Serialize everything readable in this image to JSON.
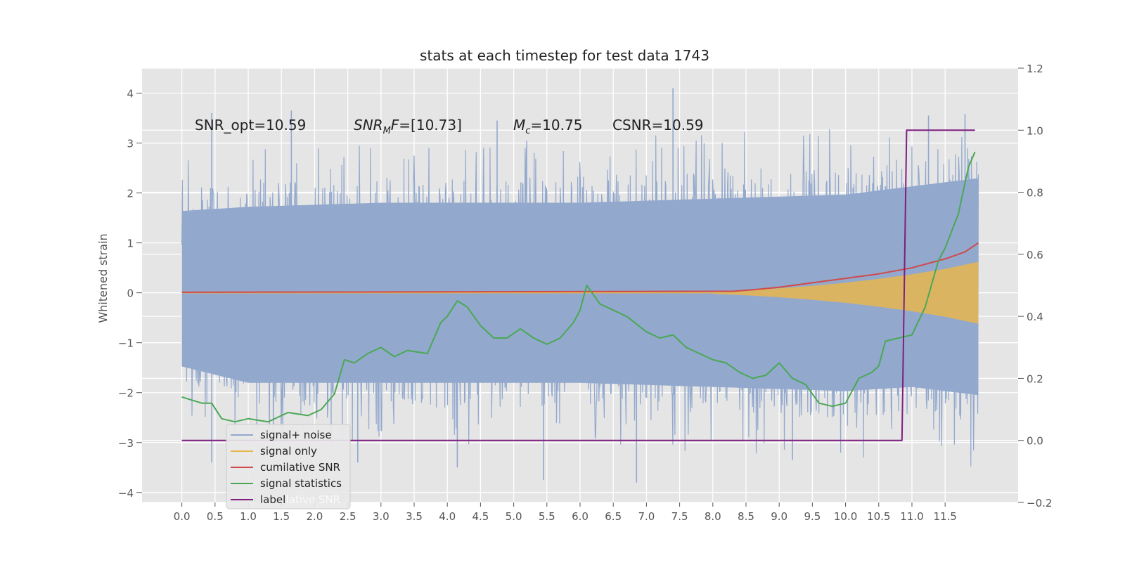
{
  "chart_data": {
    "type": "line",
    "title": "stats at each timestep for test data 1743",
    "ylabel": "Whitened strain",
    "xlabel": "",
    "xlim": [
      -0.6,
      12.6
    ],
    "ylim": [
      -4.2,
      4.5
    ],
    "y2lim": [
      -0.2,
      1.2
    ],
    "x_ticks": [
      "0.0",
      "0.5",
      "1.0",
      "1.5",
      "2.0",
      "2.5",
      "3.0",
      "3.5",
      "4.0",
      "4.5",
      "5.0",
      "5.5",
      "6.0",
      "6.5",
      "7.0",
      "7.5",
      "8.0",
      "8.5",
      "9.0",
      "9.5",
      "10.0",
      "10.5",
      "11.0",
      "11.5"
    ],
    "y_ticks": [
      "−4",
      "−3",
      "−2",
      "−1",
      "0",
      "1",
      "2",
      "3",
      "4"
    ],
    "y2_ticks": [
      "−0.2",
      "0.0",
      "0.2",
      "0.4",
      "0.6",
      "0.8",
      "1.0",
      "1.2"
    ],
    "grid": true,
    "legend_position": "lower-left",
    "colors": {
      "plot_bg": "#e5e5e5",
      "grid": "#ffffff",
      "signal_noise": "#92a8cd",
      "signal_only": "#e8b64f",
      "cumulative_snr": "#cf4b4b",
      "signal_statistics": "#4aa855",
      "label": "#7e1e80"
    },
    "annotations": [
      {
        "text": "SNR_opt=10.59"
      },
      {
        "text": "SNR",
        "sub": "M",
        "after": "F=[10.73]"
      },
      {
        "text": "M",
        "sub": "c",
        "after": "=10.75"
      },
      {
        "text": "CSNR=10.59"
      }
    ],
    "legend_ghost": "cumilative SNR",
    "series": [
      {
        "key": "signal_noise",
        "name": "signal+ noise",
        "axis": "left",
        "style": "noise",
        "x_range": [
          0.0,
          12.0
        ],
        "envelope_upper": [
          [
            0.0,
            2.0
          ],
          [
            1.0,
            2.1
          ],
          [
            3.0,
            2.2
          ],
          [
            6.0,
            2.2
          ],
          [
            8.0,
            2.3
          ],
          [
            10.0,
            2.4
          ],
          [
            11.0,
            2.6
          ],
          [
            12.0,
            2.8
          ]
        ],
        "envelope_lower": [
          [
            0.0,
            -1.8
          ],
          [
            1.0,
            -2.2
          ],
          [
            3.0,
            -2.2
          ],
          [
            6.0,
            -2.2
          ],
          [
            8.0,
            -2.3
          ],
          [
            10.0,
            -2.4
          ],
          [
            11.0,
            -2.3
          ],
          [
            12.0,
            -2.5
          ]
        ],
        "notable_peaks": [
          [
            0.45,
            3.6
          ],
          [
            1.65,
            3.65
          ],
          [
            4.75,
            3.45
          ],
          [
            7.4,
            4.1
          ],
          [
            11.25,
            3.55
          ],
          [
            11.8,
            3.58
          ]
        ],
        "notable_troughs": [
          [
            0.45,
            -3.4
          ],
          [
            2.65,
            -3.4
          ],
          [
            4.15,
            -3.5
          ],
          [
            5.45,
            -3.75
          ],
          [
            6.85,
            -3.8
          ],
          [
            9.2,
            -3.35
          ]
        ]
      },
      {
        "key": "signal_only",
        "name": "signal only",
        "axis": "left",
        "style": "chirp",
        "x": [
          8.0,
          8.5,
          9.0,
          9.5,
          10.0,
          10.5,
          11.0,
          11.5,
          12.0
        ],
        "amplitude": [
          0.02,
          0.05,
          0.09,
          0.14,
          0.2,
          0.28,
          0.37,
          0.48,
          0.62
        ]
      },
      {
        "key": "cumulative_snr",
        "name": "cumilative SNR",
        "axis": "left",
        "style": "line",
        "x": [
          0.0,
          8.3,
          8.6,
          9.0,
          9.5,
          10.0,
          10.5,
          11.0,
          11.5,
          11.8,
          12.0
        ],
        "y": [
          0.01,
          0.03,
          0.06,
          0.11,
          0.2,
          0.29,
          0.38,
          0.5,
          0.68,
          0.82,
          1.0
        ]
      },
      {
        "key": "signal_statistics",
        "name": "signal statistics",
        "axis": "right",
        "style": "line",
        "x": [
          0.0,
          0.15,
          0.3,
          0.45,
          0.6,
          0.8,
          1.0,
          1.3,
          1.6,
          1.9,
          2.1,
          2.3,
          2.45,
          2.6,
          2.8,
          3.0,
          3.2,
          3.4,
          3.7,
          3.9,
          4.0,
          4.15,
          4.3,
          4.5,
          4.7,
          4.9,
          5.1,
          5.3,
          5.5,
          5.7,
          5.9,
          6.0,
          6.1,
          6.3,
          6.5,
          6.7,
          7.0,
          7.2,
          7.4,
          7.6,
          7.8,
          8.0,
          8.2,
          8.4,
          8.6,
          8.8,
          9.0,
          9.2,
          9.4,
          9.6,
          9.8,
          10.0,
          10.2,
          10.4,
          10.5,
          10.6,
          10.8,
          11.0,
          11.2,
          11.4,
          11.5,
          11.7,
          11.85,
          11.95
        ],
        "y": [
          0.14,
          0.13,
          0.12,
          0.12,
          0.07,
          0.06,
          0.07,
          0.06,
          0.09,
          0.08,
          0.1,
          0.15,
          0.26,
          0.25,
          0.28,
          0.3,
          0.27,
          0.29,
          0.28,
          0.38,
          0.4,
          0.45,
          0.43,
          0.37,
          0.33,
          0.33,
          0.36,
          0.33,
          0.31,
          0.33,
          0.38,
          0.42,
          0.5,
          0.44,
          0.42,
          0.4,
          0.35,
          0.33,
          0.34,
          0.3,
          0.28,
          0.26,
          0.25,
          0.22,
          0.2,
          0.21,
          0.25,
          0.2,
          0.18,
          0.12,
          0.11,
          0.12,
          0.2,
          0.22,
          0.24,
          0.32,
          0.33,
          0.34,
          0.43,
          0.58,
          0.62,
          0.73,
          0.88,
          0.93
        ]
      },
      {
        "key": "label",
        "name": "label",
        "axis": "right",
        "style": "line",
        "x": [
          0.0,
          10.85,
          10.92,
          11.95
        ],
        "y": [
          0.0,
          0.0,
          1.0,
          1.0
        ]
      }
    ]
  }
}
